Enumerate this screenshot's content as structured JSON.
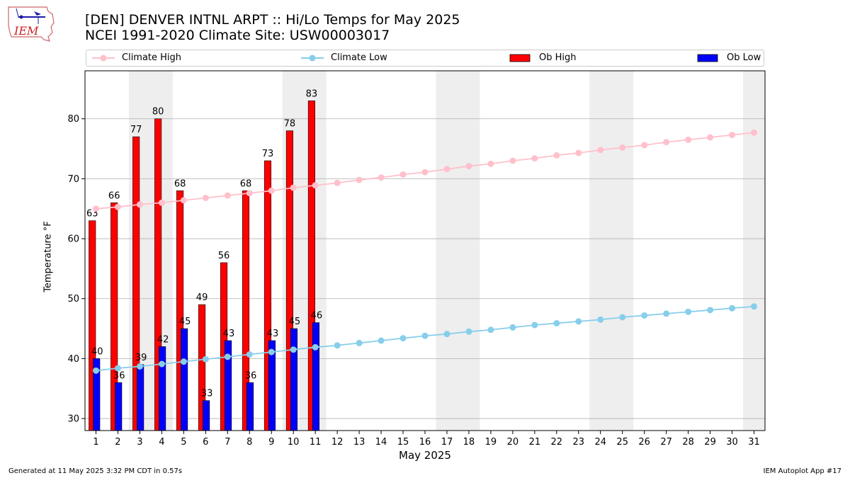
{
  "logo": {
    "text": "IEM"
  },
  "title": {
    "line1": "[DEN] DENVER INTNL ARPT :: Hi/Lo Temps for May 2025",
    "line2": "NCEI 1991-2020 Climate Site: USW00003017"
  },
  "legend": {
    "climate_high": "Climate High",
    "climate_low": "Climate Low",
    "ob_high": "Ob High",
    "ob_low": "Ob Low"
  },
  "footer": {
    "left": "Generated at 11 May 2025 3:32 PM CDT in 0.57s",
    "right": "IEM Autoplot App #17"
  },
  "colors": {
    "climate_high": "#ffc0cb",
    "climate_low": "#87ceeb",
    "ob_high": "#ff0000",
    "ob_low": "#0000ff",
    "weekend_shade": "#eeeeee",
    "grid": "#b0b0b0"
  },
  "chart_data": {
    "type": "bar",
    "xlabel": "May 2025",
    "ylabel": "Temperature °F",
    "ylim": [
      28,
      88
    ],
    "yticks": [
      30,
      40,
      50,
      60,
      70,
      80
    ],
    "days": [
      1,
      2,
      3,
      4,
      5,
      6,
      7,
      8,
      9,
      10,
      11,
      12,
      13,
      14,
      15,
      16,
      17,
      18,
      19,
      20,
      21,
      22,
      23,
      24,
      25,
      26,
      27,
      28,
      29,
      30,
      31
    ],
    "weekend_days": [
      3,
      4,
      10,
      11,
      17,
      18,
      24,
      25,
      31
    ],
    "grid": "horizontal",
    "series": [
      {
        "name": "Ob High",
        "kind": "bar",
        "values": [
          63,
          66,
          77,
          80,
          68,
          49,
          56,
          68,
          73,
          78,
          83
        ]
      },
      {
        "name": "Ob Low",
        "kind": "bar",
        "values": [
          40,
          36,
          39,
          42,
          45,
          33,
          43,
          36,
          43,
          45,
          46
        ]
      },
      {
        "name": "Climate High",
        "kind": "line",
        "values": [
          65.0,
          65.3,
          65.7,
          66.0,
          66.4,
          66.8,
          67.2,
          67.6,
          68.0,
          68.5,
          68.9,
          69.3,
          69.8,
          70.2,
          70.7,
          71.1,
          71.6,
          72.1,
          72.5,
          73.0,
          73.4,
          73.9,
          74.3,
          74.8,
          75.2,
          75.6,
          76.1,
          76.5,
          76.9,
          77.3,
          77.7
        ]
      },
      {
        "name": "Climate Low",
        "kind": "line",
        "values": [
          38.0,
          38.4,
          38.7,
          39.1,
          39.5,
          39.9,
          40.3,
          40.7,
          41.1,
          41.5,
          41.9,
          42.2,
          42.6,
          43.0,
          43.4,
          43.8,
          44.1,
          44.5,
          44.8,
          45.2,
          45.6,
          45.9,
          46.2,
          46.5,
          46.9,
          47.2,
          47.5,
          47.8,
          48.1,
          48.4,
          48.7
        ]
      }
    ]
  }
}
